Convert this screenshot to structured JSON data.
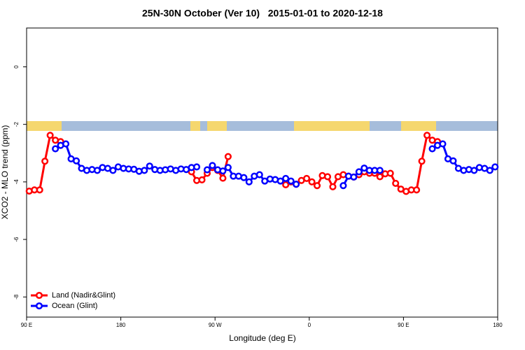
{
  "chart_data": {
    "type": "line",
    "title": "25N-30N October (Ver 10)   2015-01-01 to 2020-12-18",
    "xlabel": "Longitude (deg E)",
    "ylabel": "XCO2 - MLO trend (ppm)",
    "xlim": [
      90,
      540
    ],
    "ylim": [
      -8.7,
      1.35
    ],
    "xticks": [
      {
        "value": 90,
        "label": "90 E"
      },
      180,
      {
        "value": 270,
        "label": "90 W"
      },
      {
        "value": 360,
        "label": "0"
      },
      {
        "value": 450,
        "label": "90 E"
      },
      {
        "value": 540,
        "label": "180"
      }
    ],
    "yticks": [
      0,
      -2,
      -4,
      -6,
      -8
    ],
    "legend": "bottomleft",
    "x": [
      92.5,
      97.5,
      102.5,
      107.5,
      112.5,
      117.5,
      122.5,
      127.5,
      132.5,
      137.5,
      142.5,
      147.5,
      152.5,
      157.5,
      162.5,
      167.5,
      172.5,
      177.5,
      182.5,
      187.5,
      192.5,
      197.5,
      202.5,
      207.5,
      212.5,
      217.5,
      222.5,
      227.5,
      232.5,
      237.5,
      242.5,
      247.5,
      252.5,
      257.5,
      262.5,
      267.5,
      272.5,
      277.5,
      282.5,
      287.5,
      292.5,
      297.5,
      302.5,
      307.5,
      312.5,
      317.5,
      322.5,
      327.5,
      332.5,
      337.5,
      342.5,
      347.5,
      352.5,
      357.5,
      362.5,
      367.5,
      372.5,
      377.5,
      382.5,
      387.5,
      392.5,
      397.5,
      402.5,
      407.5,
      412.5,
      417.5,
      422.5,
      427.5,
      432.5,
      437.5,
      442.5,
      447.5,
      452.5,
      457.5,
      462.5,
      467.5,
      472.5,
      477.5,
      482.5,
      487.5,
      492.5,
      497.5,
      502.5,
      507.5,
      512.5,
      517.5,
      522.5,
      527.5,
      532.5,
      537.5
    ],
    "series": [
      {
        "name": "Land (Nadir&Glint)",
        "color": "#ff0000",
        "values": [
          -4.32,
          -4.28,
          -4.28,
          -3.28,
          -2.38,
          -2.55,
          -2.6,
          null,
          null,
          null,
          null,
          null,
          null,
          null,
          null,
          null,
          null,
          null,
          null,
          null,
          null,
          null,
          null,
          null,
          null,
          null,
          null,
          null,
          null,
          null,
          null,
          -3.65,
          -3.95,
          -3.93,
          -3.7,
          -3.5,
          -3.6,
          -3.87,
          -3.12,
          null,
          null,
          null,
          null,
          null,
          null,
          null,
          null,
          null,
          null,
          -4.1,
          -4.0,
          -4.08,
          -3.95,
          -3.88,
          -4.0,
          -4.13,
          -3.78,
          -3.82,
          -4.17,
          -3.82,
          -3.75,
          -3.8,
          -3.83,
          -3.75,
          -3.65,
          -3.7,
          -3.7,
          -3.82,
          -3.72,
          -3.7,
          -4.05,
          -4.25,
          -4.33,
          -4.28,
          -4.28,
          -3.28,
          -2.38,
          -2.55,
          -2.6,
          null,
          null,
          null,
          null,
          null,
          null,
          null,
          null,
          null,
          null,
          null
        ]
      },
      {
        "name": "Ocean (Glint)",
        "color": "#0000ff",
        "values": [
          null,
          null,
          null,
          null,
          null,
          -2.85,
          -2.73,
          -2.68,
          -3.2,
          -3.27,
          -3.53,
          -3.6,
          -3.57,
          -3.6,
          -3.5,
          -3.53,
          -3.6,
          -3.48,
          -3.53,
          -3.55,
          -3.56,
          -3.63,
          -3.6,
          -3.45,
          -3.57,
          -3.6,
          -3.58,
          -3.55,
          -3.6,
          -3.55,
          -3.57,
          -3.5,
          -3.48,
          null,
          -3.58,
          -3.43,
          -3.58,
          -3.62,
          -3.5,
          -3.8,
          -3.8,
          -3.85,
          -4.0,
          -3.8,
          -3.75,
          -3.97,
          -3.9,
          -3.92,
          -3.97,
          -3.88,
          -3.97,
          -4.08,
          null,
          null,
          null,
          null,
          null,
          null,
          null,
          null,
          -4.13,
          -3.8,
          -3.83,
          -3.65,
          -3.52,
          -3.6,
          -3.6,
          -3.6,
          null,
          null,
          null,
          null,
          null,
          null,
          null,
          null,
          null,
          -2.85,
          -2.73,
          -2.68,
          -3.2,
          -3.27,
          -3.53,
          -3.6,
          -3.57,
          -3.6,
          -3.5,
          -3.53,
          -3.6,
          -3.48
        ]
      }
    ]
  }
}
